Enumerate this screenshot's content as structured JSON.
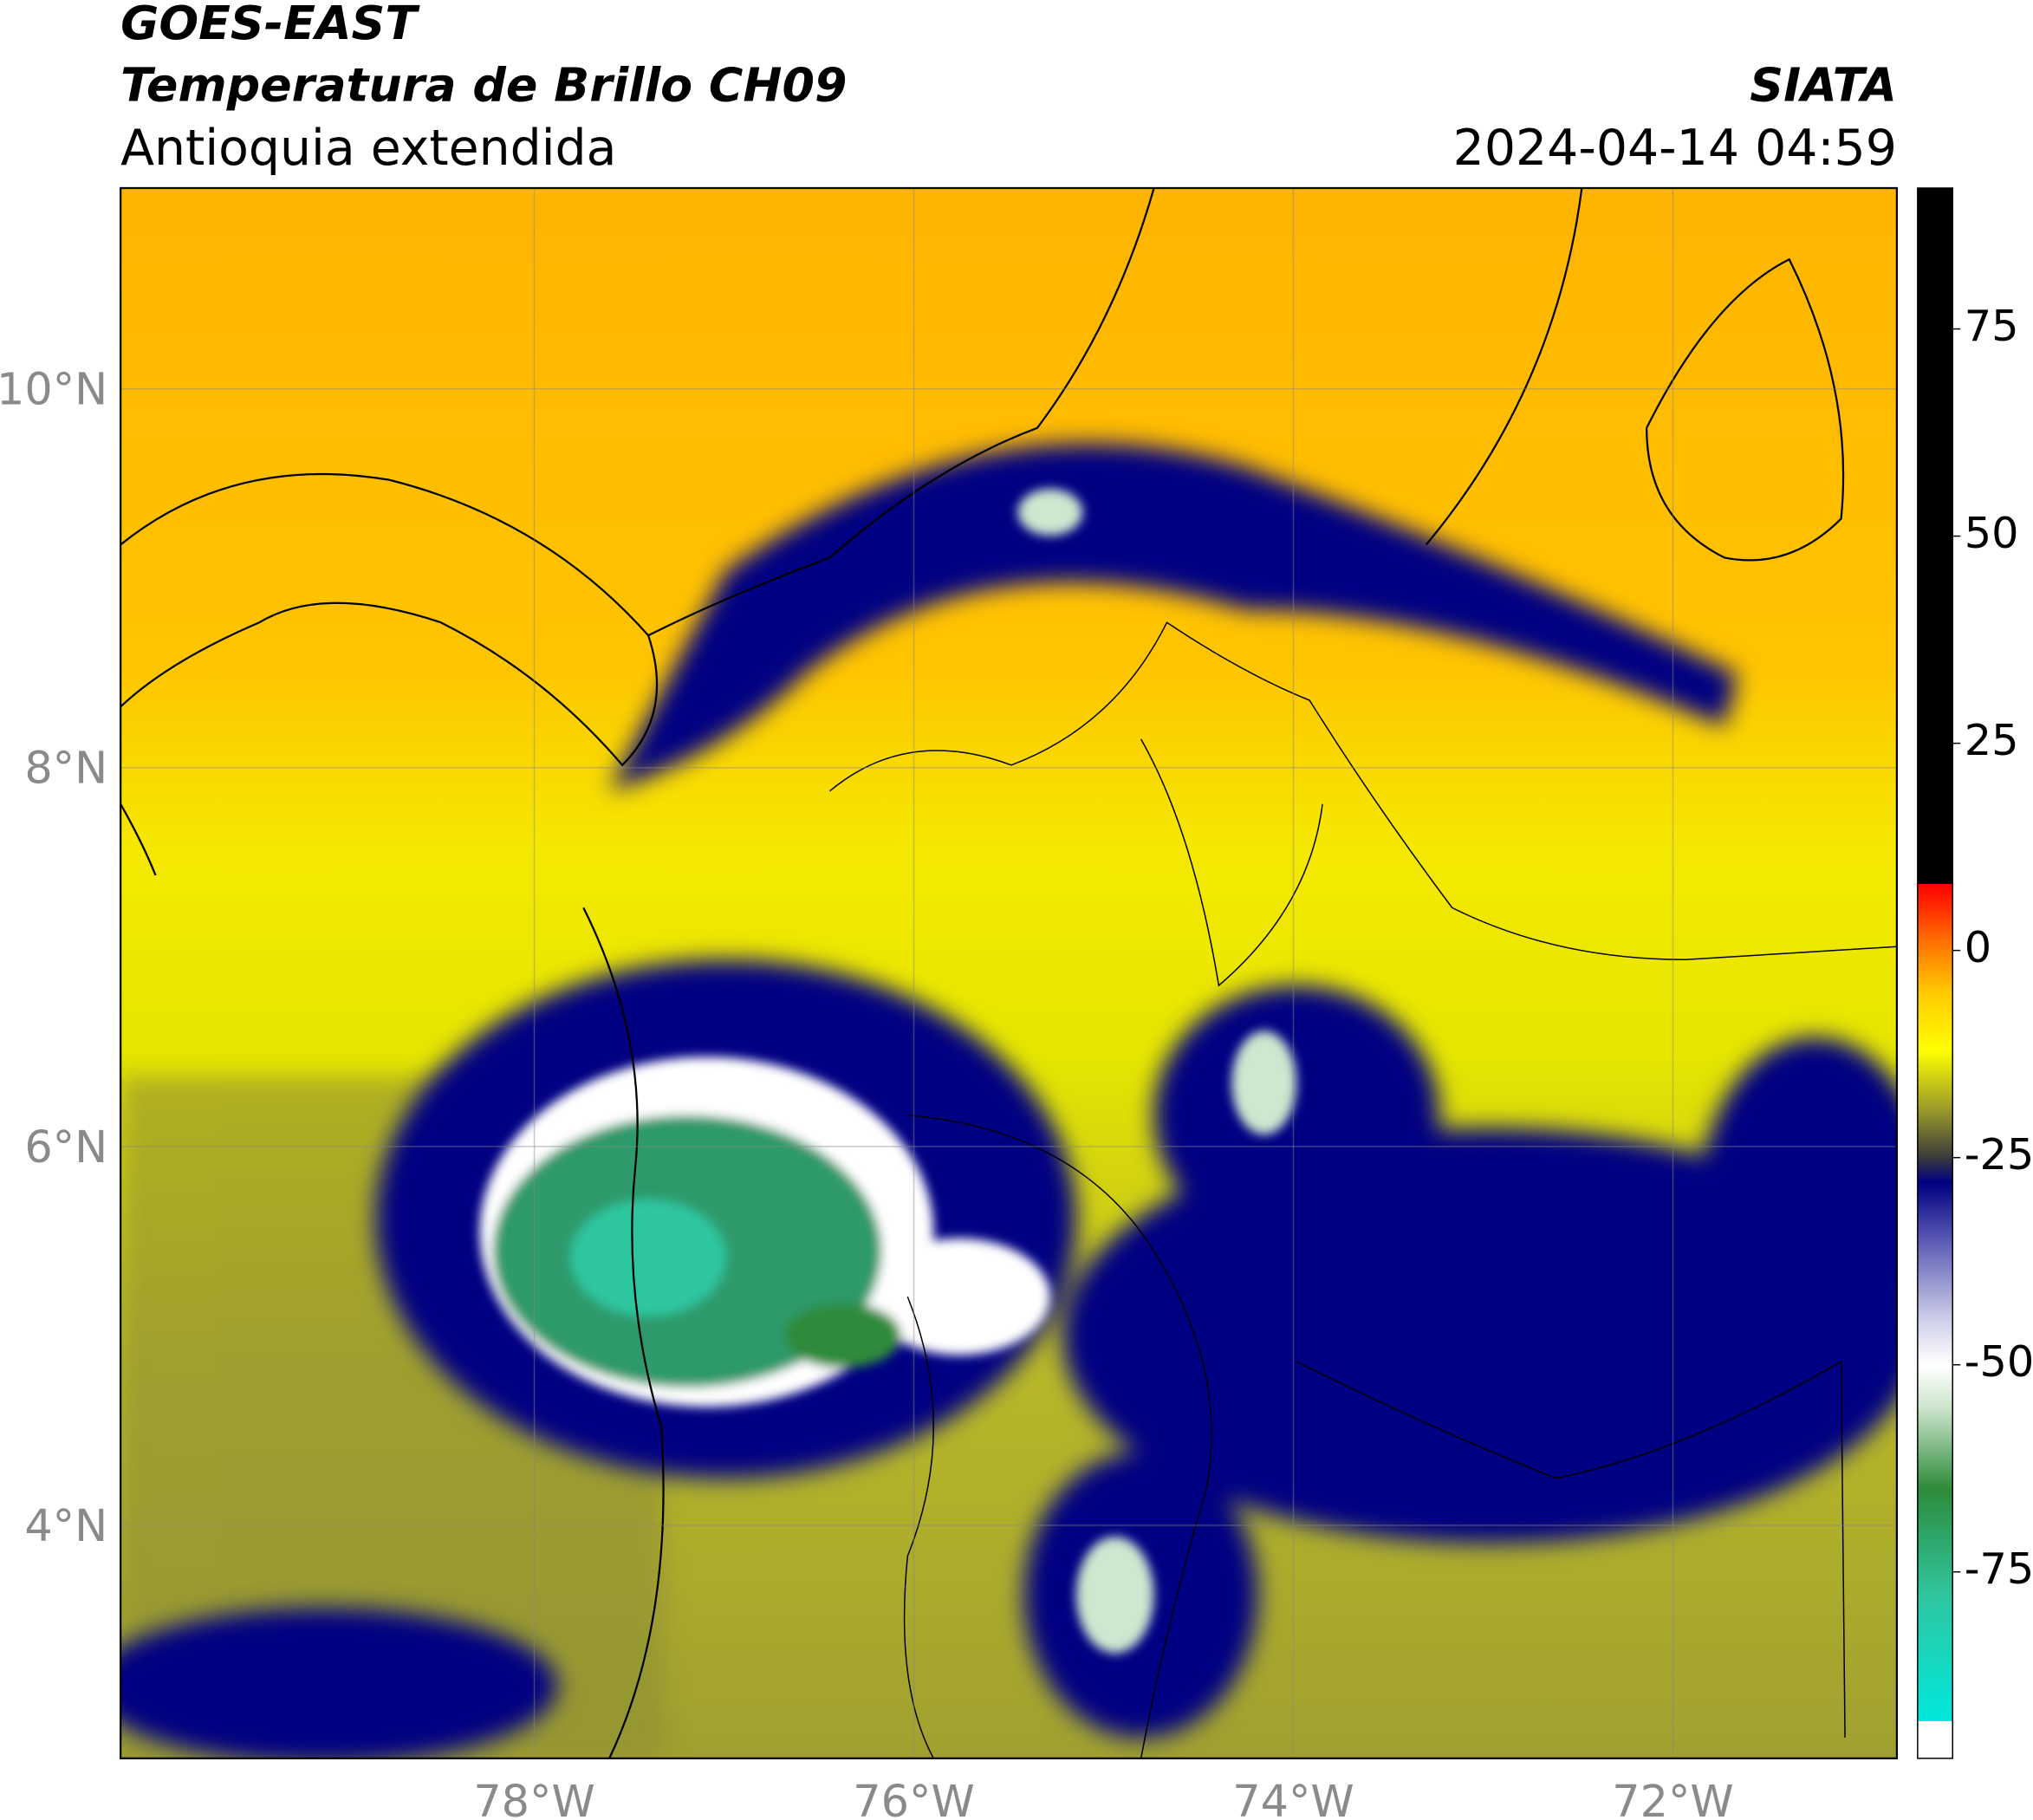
{
  "header": {
    "title": "GOES-EAST",
    "subtitle": "Temperatura de Brillo CH09",
    "region": "Antioquia extendida",
    "source": "SIATA",
    "datetime": "2024-04-14 04:59"
  },
  "map": {
    "lonlim": [
      -80.18,
      -70.82
    ],
    "latlim": [
      2.77,
      11.06
    ],
    "grid": true,
    "xticks": [
      {
        "value": -78,
        "label": "78°W"
      },
      {
        "value": -76,
        "label": "76°W"
      },
      {
        "value": -74,
        "label": "74°W"
      },
      {
        "value": -72,
        "label": "72°W"
      }
    ],
    "yticks": [
      {
        "value": 10,
        "label": "10°N"
      },
      {
        "value": 8,
        "label": "8°N"
      },
      {
        "value": 6,
        "label": "6°N"
      },
      {
        "value": 4,
        "label": "4°N"
      }
    ]
  },
  "colorbar": {
    "lim": [
      -97.5,
      92
    ],
    "ticks": [
      75,
      50,
      25,
      0,
      -25,
      -50,
      -75
    ],
    "stops": [
      [
        -97.5,
        "#ffffff"
      ],
      [
        -93,
        "#ffffff"
      ],
      [
        -93,
        "#00e8dc"
      ],
      [
        -78,
        "#2fc6a0"
      ],
      [
        -65,
        "#2e8b3a"
      ],
      [
        -55,
        "#cfe6cf"
      ],
      [
        -50,
        "#ffffff"
      ],
      [
        -44,
        "#c8c8e6"
      ],
      [
        -35,
        "#5a5ab4"
      ],
      [
        -28,
        "#000082"
      ],
      [
        -25,
        "#3a3a3a"
      ],
      [
        -20,
        "#8e8e2e"
      ],
      [
        -12,
        "#ffff00"
      ],
      [
        -5,
        "#ffc800"
      ],
      [
        0,
        "#ff8000"
      ],
      [
        8,
        "#ff0000"
      ],
      [
        8,
        "#000000"
      ],
      [
        92,
        "#000000"
      ]
    ]
  }
}
